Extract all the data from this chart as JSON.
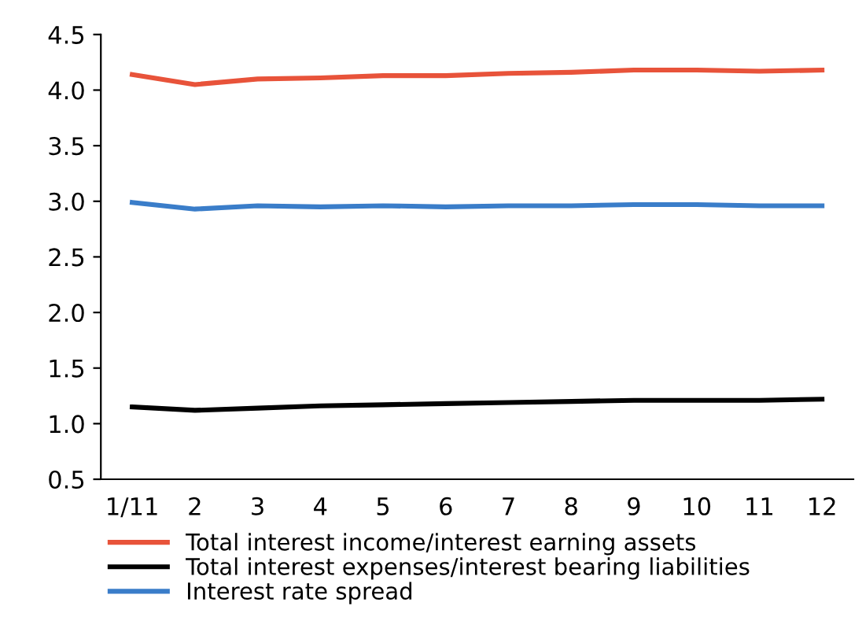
{
  "chart_data": {
    "type": "line",
    "categories": [
      "1/11",
      "2",
      "3",
      "4",
      "5",
      "6",
      "7",
      "8",
      "9",
      "10",
      "11",
      "12"
    ],
    "series": [
      {
        "name": "Total interest income/interest earning assets",
        "color": "#e8533a",
        "values": [
          4.14,
          4.05,
          4.1,
          4.11,
          4.13,
          4.13,
          4.15,
          4.16,
          4.18,
          4.18,
          4.17,
          4.18
        ]
      },
      {
        "name": "Total interest expenses/interest bearing liabilities",
        "color": "#000000",
        "values": [
          1.15,
          1.12,
          1.14,
          1.16,
          1.17,
          1.18,
          1.19,
          1.2,
          1.21,
          1.21,
          1.21,
          1.22
        ]
      },
      {
        "name": "Interest rate spread",
        "color": "#3a7dc9",
        "values": [
          2.99,
          2.93,
          2.96,
          2.95,
          2.96,
          2.95,
          2.96,
          2.96,
          2.97,
          2.97,
          2.96,
          2.96
        ]
      }
    ],
    "ylim": [
      0.5,
      4.5
    ],
    "yticks": [
      {
        "value": 0.5,
        "label": "0.5"
      },
      {
        "value": 1,
        "label": "1.0"
      },
      {
        "value": 1.5,
        "label": "1.5"
      },
      {
        "value": 2,
        "label": "2.0"
      },
      {
        "value": 2.5,
        "label": "2.5"
      },
      {
        "value": 3,
        "label": "3.0"
      },
      {
        "value": 3.5,
        "label": "3.5"
      },
      {
        "value": 4,
        "label": "4.0"
      },
      {
        "value": 4.5,
        "label": "4.5"
      }
    ],
    "grid": false,
    "legend": "bottom left",
    "marker": "none",
    "line_style": "solid"
  }
}
